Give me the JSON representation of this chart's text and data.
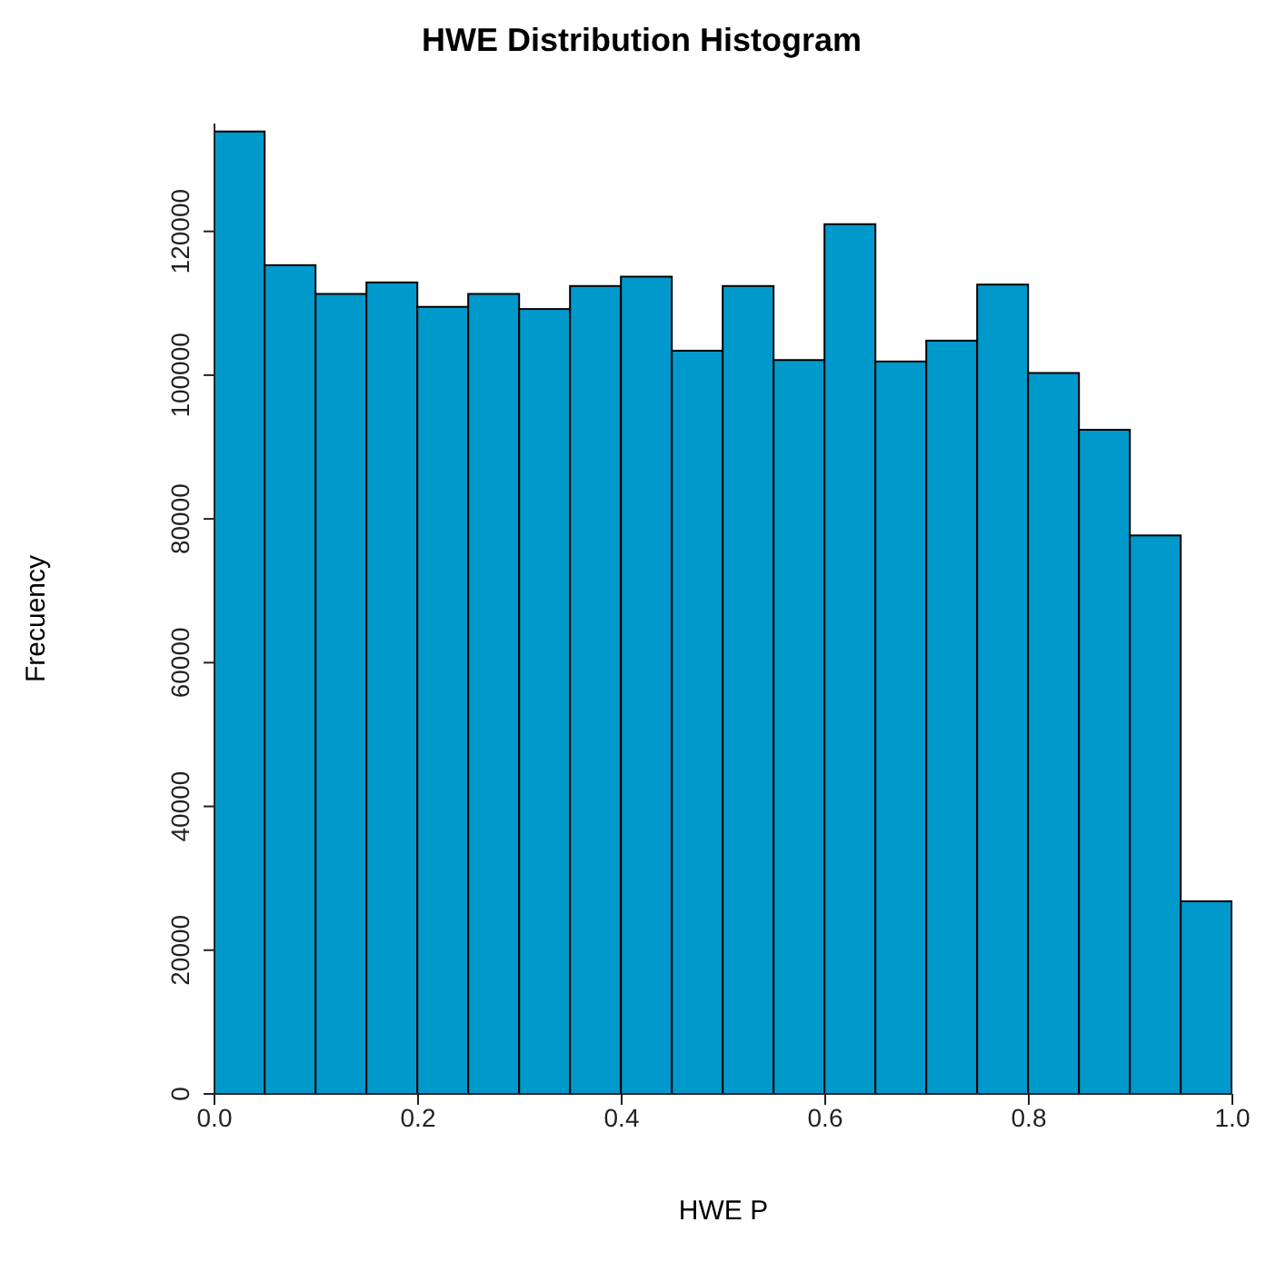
{
  "chart_data": {
    "type": "histogram",
    "title": "HWE Distribution Histogram",
    "xlabel": "HWE P",
    "ylabel": "Frecuency",
    "bins": [
      0,
      0.05,
      0.1,
      0.15,
      0.2,
      0.25,
      0.3,
      0.35,
      0.4,
      0.45,
      0.5,
      0.55,
      0.6,
      0.65,
      0.7,
      0.75,
      0.8,
      0.85,
      0.9,
      0.95,
      1.0
    ],
    "values": [
      133900,
      115300,
      111300,
      112900,
      109500,
      111300,
      109200,
      112400,
      113700,
      103400,
      112400,
      102100,
      121000,
      101900,
      104800,
      112600,
      100300,
      92400,
      77700,
      26800
    ],
    "color": "#0099cc",
    "xlim": [
      0,
      1
    ],
    "xticks": [
      {
        "value": 0,
        "label": "0.0"
      },
      {
        "value": 0.2,
        "label": "0.2"
      },
      {
        "value": 0.4,
        "label": "0.4"
      },
      {
        "value": 0.6,
        "label": "0.6"
      },
      {
        "value": 0.8,
        "label": "0.8"
      },
      {
        "value": 1,
        "label": "1.0"
      }
    ],
    "ylim": [
      0,
      135000
    ],
    "yticks": [
      0,
      20000,
      40000,
      60000,
      80000,
      100000,
      120000
    ],
    "grid": false
  }
}
